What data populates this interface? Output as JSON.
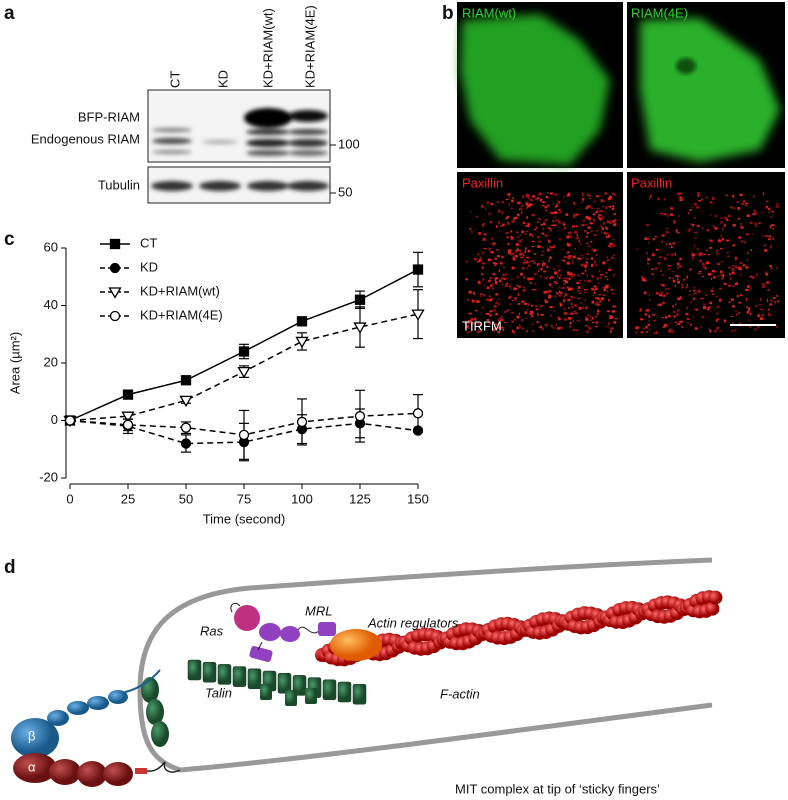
{
  "panel_a": {
    "label": "a",
    "lanes": [
      "CT",
      "KD",
      "KD+RIAM(wt)",
      "KD+RIAM(4E)"
    ],
    "bands": [
      "BFP-RIAM",
      "Endogenous RIAM",
      "Tubulin"
    ],
    "markers": [
      "100",
      "50"
    ]
  },
  "panel_b": {
    "label": "b",
    "channels": [
      "RIAM(wt)",
      "RIAM(4E)",
      "Paxillin",
      "Paxillin"
    ],
    "method": "TIRFM"
  },
  "chart_data": {
    "type": "line",
    "label": "c",
    "x": [
      0,
      25,
      50,
      75,
      100,
      125,
      150
    ],
    "xlabel": "Time (second)",
    "ylabel": "Area (µm²)",
    "xlim": [
      0,
      150
    ],
    "xticks": [
      0,
      25,
      50,
      75,
      100,
      125,
      150
    ],
    "ylim": [
      -20,
      60
    ],
    "yticks": [
      -20,
      0,
      20,
      40,
      60
    ],
    "legend": "upper left",
    "series": [
      {
        "name": "CT",
        "color": "#000000",
        "marker": "square",
        "filled": true,
        "dash": "solid",
        "values": [
          0,
          9,
          14,
          24,
          34.5,
          42,
          52.5
        ],
        "errors": [
          0.5,
          0.5,
          0.5,
          2.5,
          1.5,
          3,
          6
        ]
      },
      {
        "name": "KD",
        "color": "#000000",
        "marker": "circle",
        "filled": true,
        "dash": "dashed",
        "values": [
          0,
          -2,
          -8,
          -7.5,
          -3,
          -1,
          -3.5
        ],
        "errors": [
          0.5,
          2.5,
          3,
          6.5,
          5,
          5,
          0.5
        ]
      },
      {
        "name": "KD+RIAM(wt)",
        "color": "#000000",
        "marker": "triangle-down",
        "filled": false,
        "dash": "dashed",
        "values": [
          0,
          1.5,
          7,
          17,
          27.5,
          32.5,
          37
        ],
        "errors": [
          0.5,
          1,
          1,
          2,
          3,
          7,
          8.5
        ]
      },
      {
        "name": "KD+RIAM(4E)",
        "color": "#000000",
        "marker": "circle",
        "filled": false,
        "dash": "dashed",
        "values": [
          0,
          -1.5,
          -2.5,
          -5,
          -0.5,
          1.5,
          2.5
        ],
        "errors": [
          0.5,
          2,
          2,
          8.5,
          8,
          9,
          6.5
        ]
      }
    ]
  },
  "panel_d": {
    "label": "d",
    "labels": {
      "ras": "Ras",
      "mrl": "MRL",
      "actin_regulators": "Actin regulators",
      "talin": "Talin",
      "f_actin": "F-actin",
      "beta": "β",
      "alpha": "α"
    },
    "caption": "MIT complex at tip of ‘sticky fingers’"
  }
}
